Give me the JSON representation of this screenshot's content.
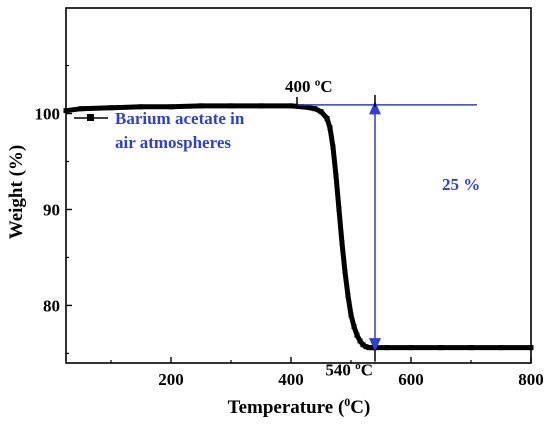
{
  "chart_data": {
    "type": "line",
    "xlabel_main": "Temperature (",
    "xlabel_sup": "0",
    "xlabel_end": "C)",
    "ylabel": "Weight (%)",
    "xlim": [
      25,
      800
    ],
    "ylim": [
      74,
      111
    ],
    "x_ticks": [
      200,
      400,
      600,
      800
    ],
    "y_ticks": [
      80,
      90,
      100
    ],
    "grid": false,
    "legend_position": "top-left",
    "series": [
      {
        "name": "Barium acetate in air atmospheres",
        "color": "#000000",
        "x": [
          25,
          50,
          100,
          150,
          200,
          250,
          300,
          350,
          400,
          420,
          440,
          450,
          460,
          465,
          470,
          475,
          480,
          485,
          490,
          495,
          500,
          505,
          510,
          515,
          520,
          525,
          530,
          535,
          540,
          560,
          600,
          650,
          700,
          750,
          800
        ],
        "y": [
          100.3,
          100.5,
          100.6,
          100.7,
          100.7,
          100.8,
          100.8,
          100.8,
          100.8,
          100.7,
          100.5,
          100.2,
          99.5,
          98.5,
          96.5,
          93.5,
          90.0,
          86.5,
          83.5,
          81.0,
          79.0,
          77.8,
          76.9,
          76.3,
          75.9,
          75.7,
          75.6,
          75.6,
          75.6,
          75.6,
          75.6,
          75.6,
          75.6,
          75.6,
          75.6
        ]
      }
    ],
    "legend_lines": [
      "Barium acetate in",
      "air atmospheres"
    ],
    "annotations": {
      "onset_label": "400 ºC",
      "end_label": "540 ºC",
      "loss_label": "25 %",
      "ref_line_y": 100.9,
      "ref_line_x_start": 410,
      "ref_line_x_end": 710,
      "arrow_x": 540,
      "arrow_y_top": 100.9,
      "arrow_y_bottom": 75.6,
      "onset_x": 410,
      "end_x": 540
    },
    "colors": {
      "annotation": "#2e3fd1",
      "data": "#000000"
    }
  }
}
